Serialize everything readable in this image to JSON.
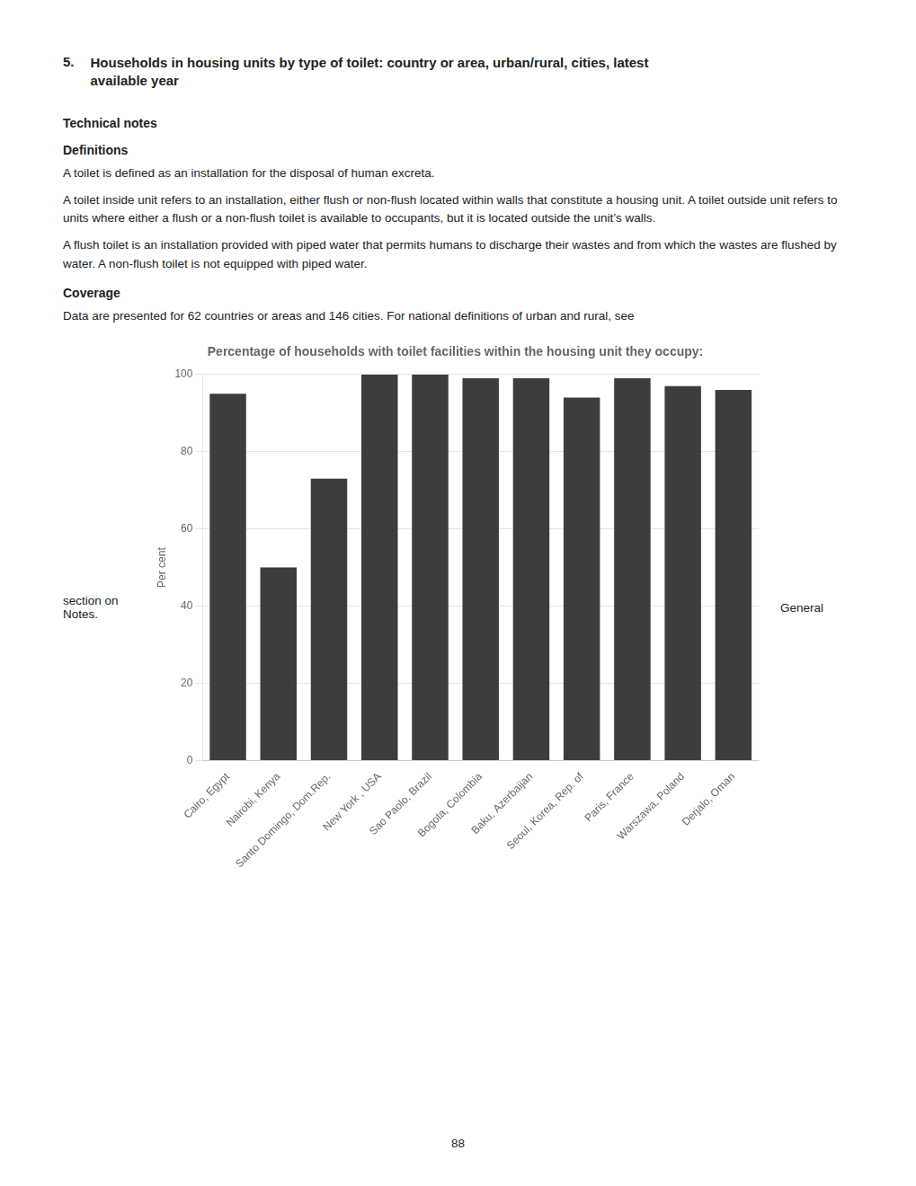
{
  "page_text": {
    "title_number": "5.",
    "title_text": "Households in housing units by type of toilet: country or area, urban/rural, cities, latest\navailable year",
    "technical_notes_heading": "Technical notes",
    "definitions_heading": "Definitions",
    "def_para1": "A toilet is defined as an installation for the disposal of human excreta.",
    "def_para2": "A toilet inside unit refers to an installation, either flush or non-flush located within walls that constitute a housing unit. A toilet outside unit refers to units where either a flush or a non-flush toilet is available to occupants, but it is located outside the unit’s walls.",
    "def_para3": "A flush toilet is an installation provided with piped water that permits humans to discharge their wastes and from which the wastes are flushed by water. A non-flush toilet is not equipped with piped water.",
    "coverage_heading": "Coverage",
    "coverage_text": "Data are presented for 62 countries or areas and 146 cities. For national definitions of urban and rural, see",
    "page_number": "88"
  },
  "chart_data": {
    "type": "bar",
    "title": "Percentage of households with toilet facilities within the housing unit they occupy:",
    "ylabel": "Per cent",
    "annotations": [
      "section on\nNotes.",
      "General"
    ],
    "categories": [
      "Cairo, Egypt",
      "Nairobi, Kenya",
      "Santo Domingo, Dom.Rep.",
      "New York , USA",
      "Sao Paolo, Brazil",
      "Bogota, Colombia",
      "Baku, Azerbaijan",
      "Seoul, Korea, Rep. of",
      "Paris, France",
      "Warszawa, Poland",
      "Derjalo, Oman"
    ],
    "values": [
      95,
      50,
      73,
      100,
      100,
      99,
      99,
      94,
      99,
      97,
      96
    ],
    "color": "#3d3d3d",
    "ylim": [
      0,
      100
    ],
    "yticks": [
      0,
      20,
      40,
      60,
      80,
      100
    ],
    "grid": true
  }
}
